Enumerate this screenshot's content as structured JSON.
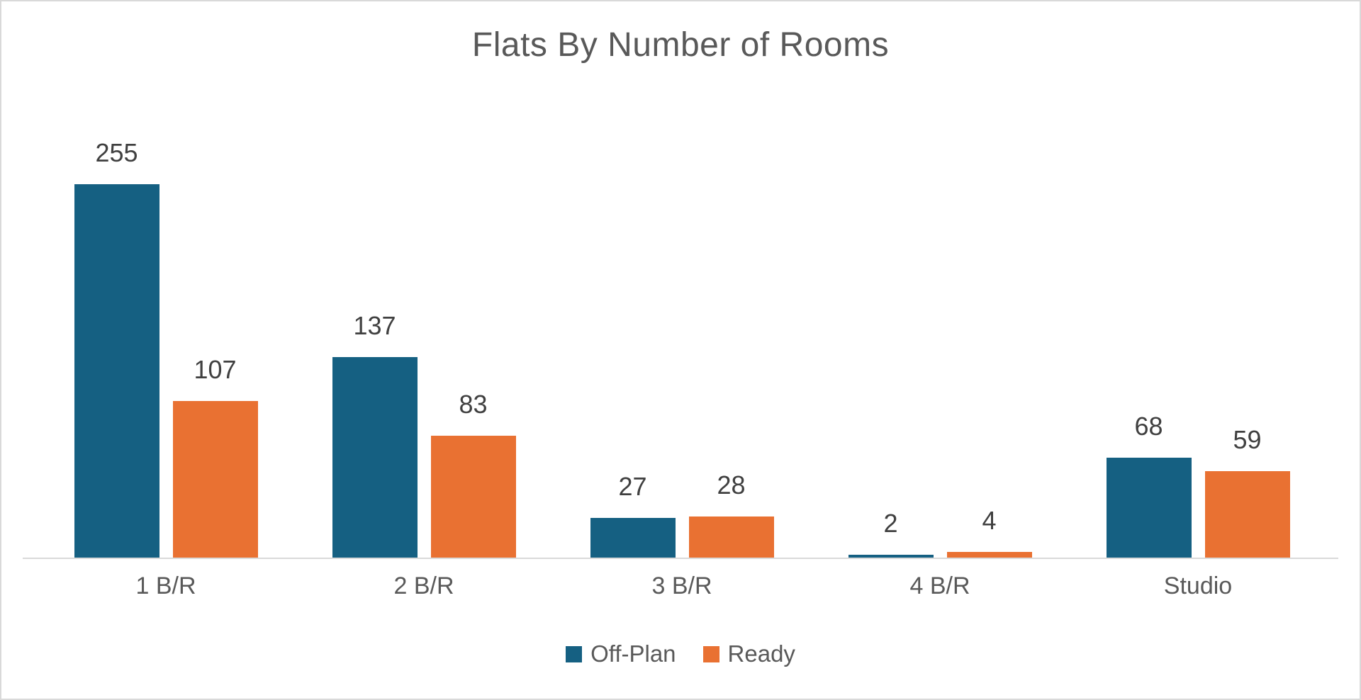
{
  "chart_data": {
    "type": "bar",
    "title": "Flats By Number of Rooms",
    "categories": [
      "1 B/R",
      "2 B/R",
      "3 B/R",
      "4 B/R",
      "Studio"
    ],
    "series": [
      {
        "name": "Off-Plan",
        "color": "#156082",
        "values": [
          255,
          137,
          27,
          2,
          68
        ]
      },
      {
        "name": "Ready",
        "color": "#E97132",
        "values": [
          107,
          83,
          28,
          4,
          59
        ]
      }
    ],
    "xlabel": "",
    "ylabel": "",
    "ylim": [
      0,
      255
    ],
    "grid": false,
    "data_labels": true,
    "legend_position": "bottom"
  },
  "styles": {
    "title_color": "#595959",
    "data_label_color": "#404040",
    "category_label_color": "#595959",
    "legend_label_color": "#595959",
    "axis_line_color": "#d9d9d9",
    "frame_border_color": "#d9d9d9",
    "background_color": "#ffffff"
  }
}
